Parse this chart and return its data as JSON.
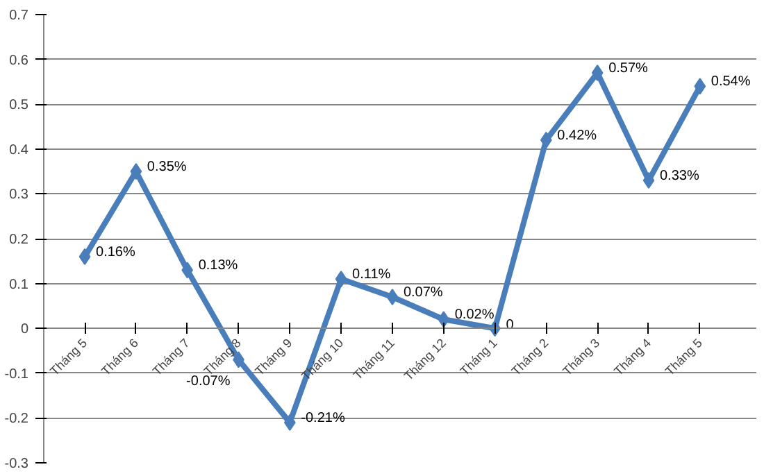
{
  "chart_data": {
    "type": "line",
    "categories": [
      "Tháng 5",
      "Tháng 6",
      "Tháng 7",
      "Tháng 8",
      "Tháng 9",
      "Tháng 10",
      "Tháng 11",
      "Tháng 12",
      "Tháng 1",
      "Tháng 2",
      "Tháng 3",
      "Tháng 4",
      "Tháng 5"
    ],
    "series": [
      {
        "color": "#4a7ebb",
        "values": [
          0.16,
          0.35,
          0.13,
          -0.07,
          -0.21,
          0.11,
          0.07,
          0.02,
          0,
          0.42,
          0.57,
          0.33,
          0.54
        ],
        "value_labels": [
          "0.16%",
          "0.35%",
          "0.13%",
          "-0.07%",
          "-0.21%",
          "0.11%",
          "0.07%",
          "0.02%",
          "0",
          "0.42%",
          "0.57%",
          "0.33%",
          "0.54%"
        ]
      }
    ],
    "ylim": [
      -0.3,
      0.7
    ],
    "yticks": [
      -0.3,
      -0.2,
      -0.1,
      0,
      0.1,
      0.2,
      0.3,
      0.4,
      0.5,
      0.6,
      0.7
    ],
    "grid": "y",
    "marker": "diamond",
    "line_style": "solid"
  }
}
